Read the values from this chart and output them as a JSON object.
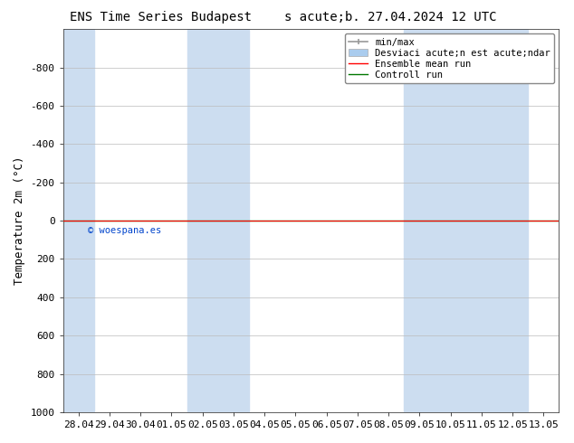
{
  "title_left": "ENS Time Series Budapest",
  "title_right": "s acute;b. 27.04.2024 12 UTC",
  "ylabel": "Temperature 2m (°C)",
  "yticks": [
    -800,
    -600,
    -400,
    -200,
    0,
    200,
    400,
    600,
    800,
    1000
  ],
  "ylim_top": -1000,
  "ylim_bottom": 1000,
  "xtick_labels": [
    "28.04",
    "29.04",
    "30.04",
    "01.05",
    "02.05",
    "03.05",
    "04.05",
    "05.05",
    "06.05",
    "07.05",
    "08.05",
    "09.05",
    "10.05",
    "11.05",
    "12.05",
    "13.05"
  ],
  "xtick_positions": [
    0,
    1,
    2,
    3,
    4,
    5,
    6,
    7,
    8,
    9,
    10,
    11,
    12,
    13,
    14,
    15
  ],
  "shaded_ranges": [
    [
      0,
      1
    ],
    [
      4,
      6
    ],
    [
      11,
      15
    ]
  ],
  "shaded_color": "#ccddf0",
  "bg_color": "#ffffff",
  "plot_bg_color": "#ffffff",
  "grid_color": "#bbbbbb",
  "ensemble_mean_color": "#ff0000",
  "control_run_color": "#007700",
  "minmax_color": "#999999",
  "stddev_color": "#aaccee",
  "copyright_text": "© woespana.es",
  "copyright_color": "#0044cc",
  "legend_items": [
    "min/max",
    "Desviaci acute;n est acute;ndar",
    "Ensemble mean run",
    "Controll run"
  ],
  "y_line_value": 0,
  "xlim_min": -0.5,
  "xlim_max": 15.5,
  "font_size_title": 10,
  "font_size_axis": 9,
  "font_size_tick": 8,
  "font_size_legend": 7.5
}
